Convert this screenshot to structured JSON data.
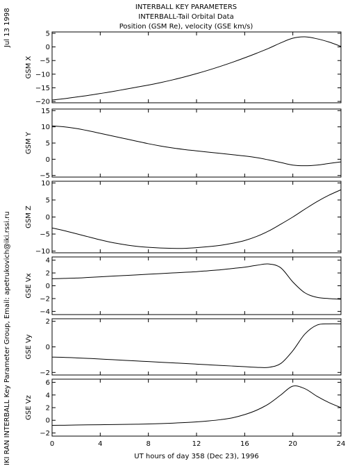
{
  "header": {
    "title_lines": [
      "INTERBALL KEY PARAMETERS",
      "INTERBALL-Tail Orbital Data",
      "Position (GSM Re), velocity (GSE km/s)"
    ]
  },
  "side": {
    "date": "Jul 13 1998",
    "credit": "IKI RAN INTERBALL Key Parameter Group, Email: apetrukovich@iki.rssi.ru"
  },
  "chart_data": {
    "type": "line",
    "xlabel": "UT hours of day 358 (Dec 23), 1996",
    "xlim": [
      0,
      24
    ],
    "xticks": [
      0,
      4,
      8,
      12,
      16,
      20,
      24
    ],
    "xtick_labels": [
      "0",
      "4",
      "8",
      "12",
      "16",
      "20",
      "24"
    ],
    "x": [
      0,
      1,
      2,
      3,
      4,
      5,
      6,
      7,
      8,
      9,
      10,
      11,
      12,
      13,
      14,
      15,
      16,
      17,
      18,
      19,
      20,
      21,
      22,
      23,
      24
    ],
    "panels": [
      {
        "ylabel": "GSM X",
        "ylim": [
          -20.5,
          5.5
        ],
        "yticks": [
          5,
          0,
          -5,
          -10,
          -15,
          -20
        ],
        "ytick_labels": [
          "5",
          "0",
          "−5",
          "−10",
          "−15",
          "−20"
        ],
        "values": [
          -19.5,
          -19.0,
          -18.4,
          -17.8,
          -17.1,
          -16.4,
          -15.6,
          -14.8,
          -14.0,
          -13.1,
          -12.1,
          -11.0,
          -9.8,
          -8.5,
          -7.1,
          -5.6,
          -4.0,
          -2.3,
          -0.5,
          1.5,
          3.2,
          3.7,
          3.0,
          1.8,
          0.2
        ]
      },
      {
        "ylabel": "GSM Y",
        "ylim": [
          -5.5,
          15.5
        ],
        "yticks": [
          15,
          10,
          5,
          0,
          -5
        ],
        "ytick_labels": [
          "15",
          "10",
          "5",
          "0",
          "−5"
        ],
        "values": [
          10.3,
          10.0,
          9.5,
          8.8,
          8.0,
          7.2,
          6.4,
          5.6,
          4.8,
          4.1,
          3.5,
          3.0,
          2.6,
          2.2,
          1.8,
          1.4,
          1.0,
          0.5,
          -0.2,
          -1.0,
          -1.8,
          -2.0,
          -1.8,
          -1.3,
          -0.8
        ]
      },
      {
        "ylabel": "GSM Z",
        "ylim": [
          -10.5,
          10.5
        ],
        "yticks": [
          10,
          5,
          0,
          -5,
          -10
        ],
        "ytick_labels": [
          "10",
          "5",
          "0",
          "−5",
          "−10"
        ],
        "values": [
          -3.2,
          -4.0,
          -4.9,
          -5.8,
          -6.7,
          -7.5,
          -8.1,
          -8.6,
          -8.9,
          -9.1,
          -9.2,
          -9.2,
          -9.0,
          -8.7,
          -8.3,
          -7.7,
          -6.9,
          -5.7,
          -4.1,
          -2.1,
          0.0,
          2.3,
          4.5,
          6.4,
          8.0
        ]
      },
      {
        "ylabel": "GSE Vx",
        "ylim": [
          -4.5,
          4.5
        ],
        "yticks": [
          4,
          2,
          0,
          -2,
          -4
        ],
        "ytick_labels": [
          "4",
          "2",
          "0",
          "−2",
          "−4"
        ],
        "values": [
          1.1,
          1.15,
          1.2,
          1.3,
          1.4,
          1.5,
          1.6,
          1.7,
          1.8,
          1.9,
          2.0,
          2.1,
          2.2,
          2.35,
          2.5,
          2.7,
          2.9,
          3.2,
          3.4,
          2.8,
          0.6,
          -1.1,
          -1.8,
          -2.0,
          -2.1
        ]
      },
      {
        "ylabel": "GSE Vy",
        "ylim": [
          -2.2,
          2.2
        ],
        "yticks": [
          2,
          0,
          -2
        ],
        "ytick_labels": [
          "2",
          "0",
          "−2"
        ],
        "values": [
          -0.8,
          -0.82,
          -0.86,
          -0.9,
          -0.95,
          -1.0,
          -1.05,
          -1.1,
          -1.15,
          -1.2,
          -1.25,
          -1.3,
          -1.35,
          -1.4,
          -1.45,
          -1.5,
          -1.55,
          -1.6,
          -1.6,
          -1.3,
          -0.3,
          1.0,
          1.7,
          1.8,
          1.8
        ]
      },
      {
        "ylabel": "GSE Vz",
        "ylim": [
          -2.5,
          6.5
        ],
        "yticks": [
          6,
          4,
          2,
          0,
          -2
        ],
        "ytick_labels": [
          "6",
          "4",
          "2",
          "0",
          "−2"
        ],
        "values": [
          -0.8,
          -0.78,
          -0.75,
          -0.72,
          -0.7,
          -0.68,
          -0.65,
          -0.62,
          -0.58,
          -0.52,
          -0.45,
          -0.36,
          -0.25,
          -0.1,
          0.1,
          0.4,
          0.9,
          1.6,
          2.6,
          4.0,
          5.4,
          5.0,
          3.8,
          2.8,
          2.0
        ]
      }
    ]
  }
}
